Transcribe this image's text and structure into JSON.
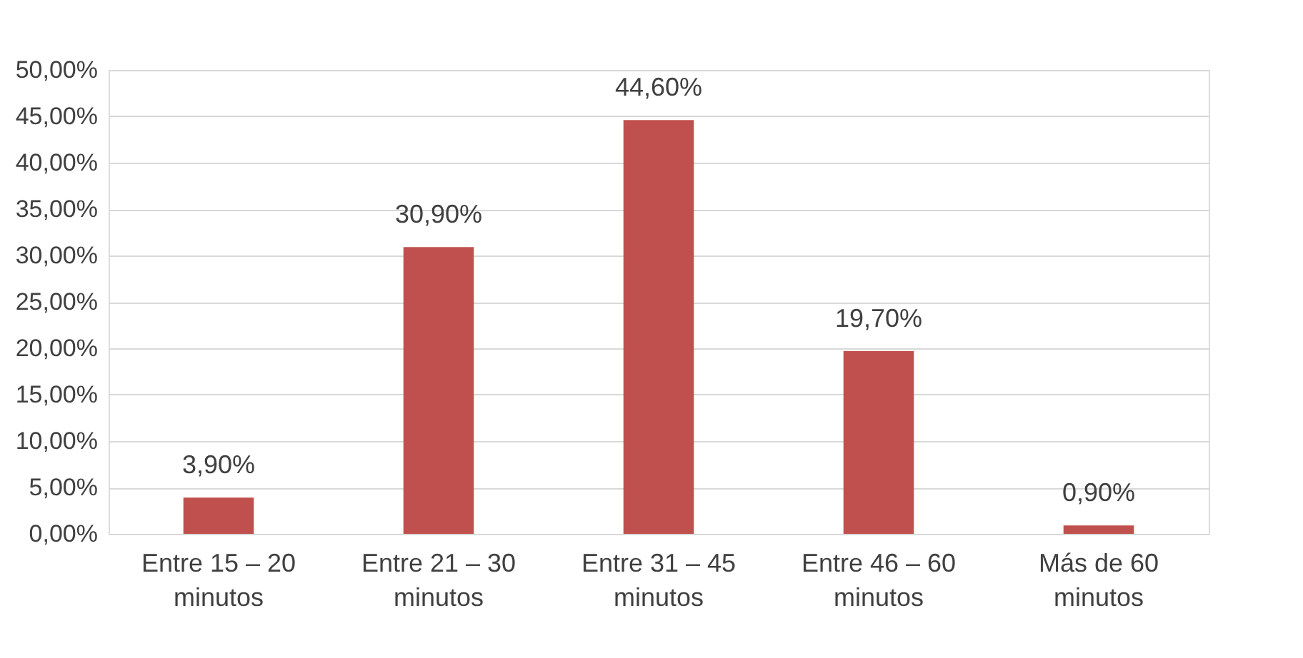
{
  "chart_data": {
    "type": "bar",
    "categories": [
      "Entre 15 – 20\nminutos",
      "Entre 21 – 30\nminutos",
      "Entre 31 – 45\nminutos",
      "Entre 46 – 60\nminutos",
      "Más de 60\nminutos"
    ],
    "values": [
      3.9,
      30.9,
      44.6,
      19.7,
      0.9
    ],
    "value_labels": [
      "3,90%",
      "30,90%",
      "44,60%",
      "19,70%",
      "0,90%"
    ],
    "color": "#c0504d",
    "ylim": [
      0,
      50
    ],
    "yticks": [
      {
        "value": 0,
        "label": "0,00%"
      },
      {
        "value": 5,
        "label": "5,00%"
      },
      {
        "value": 10,
        "label": "10,00%"
      },
      {
        "value": 15,
        "label": "15,00%"
      },
      {
        "value": 20,
        "label": "20,00%"
      },
      {
        "value": 25,
        "label": "25,00%"
      },
      {
        "value": 30,
        "label": "30,00%"
      },
      {
        "value": 35,
        "label": "35,00%"
      },
      {
        "value": 40,
        "label": "40,00%"
      },
      {
        "value": 45,
        "label": "45,00%"
      },
      {
        "value": 50,
        "label": "50,00%"
      }
    ],
    "grid": "y"
  }
}
